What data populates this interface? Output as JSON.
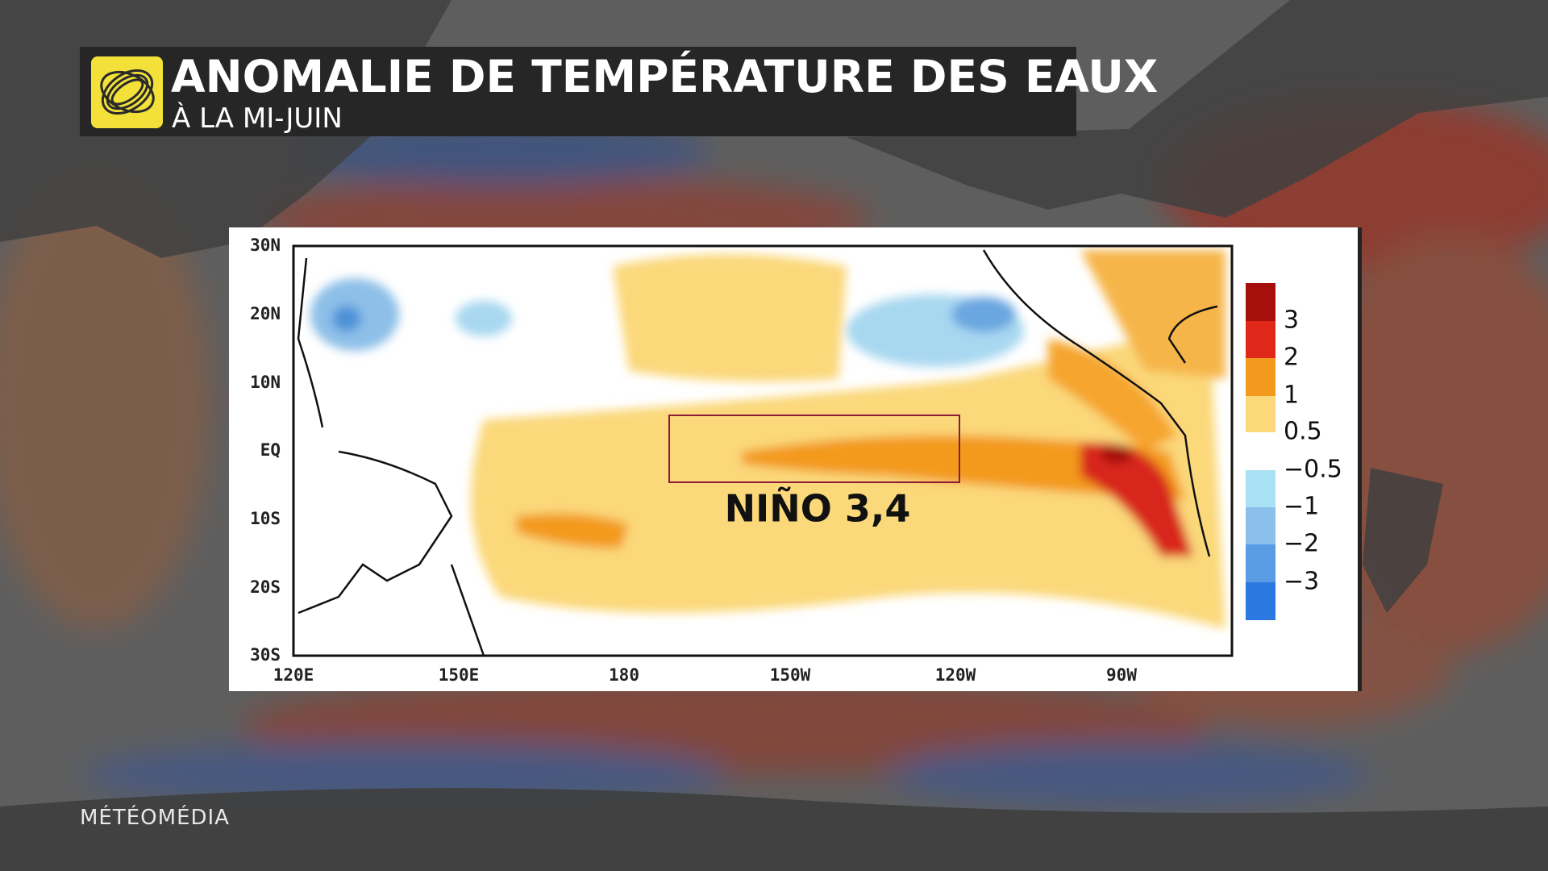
{
  "header": {
    "title": "ANOMALIE DE TEMPÉRATURE DES EAUX",
    "subtitle": "À LA MI-JUIN"
  },
  "map": {
    "lat_labels": [
      "30N",
      "20N",
      "10N",
      "EQ",
      "10S",
      "20S",
      "30S"
    ],
    "lon_labels": [
      "120E",
      "150E",
      "180",
      "150W",
      "120W",
      "90W"
    ]
  },
  "legend": {
    "labels": [
      "3",
      "2",
      "1",
      "0.5",
      "−0.5",
      "−1",
      "−2",
      "−3"
    ]
  },
  "annotation": "NIÑO 3,4",
  "brand": "MÉTÉOMÉDIA"
}
